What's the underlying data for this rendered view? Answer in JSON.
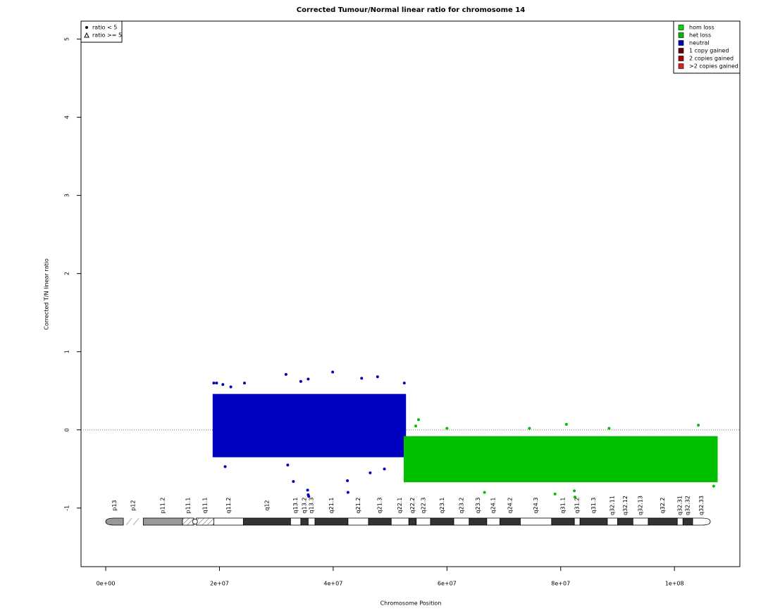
{
  "chart_data": {
    "type": "scatter",
    "title": "Corrected Tumour/Normal linear ratio for chromosome  14",
    "xlabel": "Chromosome Position",
    "ylabel": "Corrected T/N linear ratio",
    "xlim": [
      -4340000,
      111500000
    ],
    "ylim": [
      -1.75,
      5.23
    ],
    "xticks": [
      {
        "value": 0,
        "label": "0e+00"
      },
      {
        "value": 20000000,
        "label": "2e+07"
      },
      {
        "value": 40000000,
        "label": "4e+07"
      },
      {
        "value": 60000000,
        "label": "6e+07"
      },
      {
        "value": 80000000,
        "label": "8e+07"
      },
      {
        "value": 100000000,
        "label": "1e+08"
      }
    ],
    "yticks": [
      -1,
      0,
      1,
      2,
      3,
      4,
      5
    ],
    "hline": 0,
    "symbol_legend": [
      "ratio < 5",
      "ratio >= 5"
    ],
    "state_legend": [
      {
        "name": "hom loss",
        "color": "#00dd00"
      },
      {
        "name": "het loss",
        "color": "#00bb00"
      },
      {
        "name": "neutral",
        "color": "#0000bb"
      },
      {
        "name": "1 copy gained",
        "color": "#660000"
      },
      {
        "name": "2 copies gained",
        "color": "#aa0000"
      },
      {
        "name": ">2 copies gained",
        "color": "#dd2222"
      }
    ],
    "series": [
      {
        "name": "neutral",
        "color": "#0000c0",
        "x_range": [
          18800000,
          52800000
        ],
        "y_range": [
          -0.35,
          0.46
        ],
        "x": [
          19000000,
          19500000,
          20600000,
          22000000,
          24400000,
          31700000,
          34300000,
          35600000,
          39900000,
          45000000,
          47800000,
          52500000,
          33000000,
          35500000,
          35600000,
          35700000,
          42500000,
          42600000,
          46500000,
          21000000,
          49000000,
          32000000
        ],
        "y": [
          0.6,
          0.6,
          0.58,
          0.55,
          0.6,
          0.71,
          0.62,
          0.65,
          0.74,
          0.66,
          0.68,
          0.6,
          -0.66,
          -0.77,
          -0.83,
          -0.85,
          -0.65,
          -0.8,
          -0.55,
          -0.47,
          -0.5,
          -0.45
        ]
      },
      {
        "name": "het loss",
        "color": "#00c000",
        "x_range": [
          52400000,
          107600000
        ],
        "y_range": [
          -0.67,
          -0.08
        ],
        "x": [
          55000000,
          54500000,
          81000000,
          104200000,
          66600000,
          82400000,
          82500000,
          79000000,
          106900000,
          60000000,
          74500000,
          88500000
        ],
        "y": [
          0.13,
          0.05,
          0.07,
          0.06,
          -0.8,
          -0.78,
          -0.86,
          -0.82,
          -0.72,
          0.02,
          0.02,
          0.02
        ]
      }
    ],
    "ideogram": [
      {
        "name": "p13",
        "start": 0,
        "end": 3100000,
        "stain": "gvar"
      },
      {
        "name": "p12",
        "start": 3100000,
        "end": 6600000,
        "stain": "stalk"
      },
      {
        "name": "p11.2",
        "start": 6600000,
        "end": 13500000,
        "stain": "gpos50"
      },
      {
        "name": "p11.1",
        "start": 13500000,
        "end": 15500000,
        "stain": "acen"
      },
      {
        "name": "q11.1",
        "start": 15900000,
        "end": 19000000,
        "stain": "acen"
      },
      {
        "name": "q11.2",
        "start": 19000000,
        "end": 24200000,
        "stain": "gneg"
      },
      {
        "name": "q12",
        "start": 24200000,
        "end": 32500000,
        "stain": "gpos100"
      },
      {
        "name": "q13.1",
        "start": 32500000,
        "end": 34300000,
        "stain": "gneg"
      },
      {
        "name": "q13.2",
        "start": 34300000,
        "end": 35600000,
        "stain": "gpos100"
      },
      {
        "name": "q13.3",
        "start": 35600000,
        "end": 36800000,
        "stain": "gneg"
      },
      {
        "name": "q21.1",
        "start": 36800000,
        "end": 42600000,
        "stain": "gpos100"
      },
      {
        "name": "q21.2",
        "start": 42600000,
        "end": 46200000,
        "stain": "gneg"
      },
      {
        "name": "q21.3",
        "start": 46200000,
        "end": 50200000,
        "stain": "gpos100"
      },
      {
        "name": "q22.1",
        "start": 50200000,
        "end": 53300000,
        "stain": "gneg"
      },
      {
        "name": "q22.2",
        "start": 53300000,
        "end": 54600000,
        "stain": "gpos100"
      },
      {
        "name": "q22.3",
        "start": 54600000,
        "end": 57100000,
        "stain": "gneg"
      },
      {
        "name": "q23.1",
        "start": 57100000,
        "end": 61200000,
        "stain": "gpos100"
      },
      {
        "name": "q23.2",
        "start": 61200000,
        "end": 63900000,
        "stain": "gneg"
      },
      {
        "name": "q23.3",
        "start": 63900000,
        "end": 67000000,
        "stain": "gpos100"
      },
      {
        "name": "q24.1",
        "start": 67000000,
        "end": 69300000,
        "stain": "gneg"
      },
      {
        "name": "q24.2",
        "start": 69300000,
        "end": 72900000,
        "stain": "gpos100"
      },
      {
        "name": "q24.3",
        "start": 72900000,
        "end": 78400000,
        "stain": "gneg"
      },
      {
        "name": "q31.1",
        "start": 78400000,
        "end": 82400000,
        "stain": "gpos100"
      },
      {
        "name": "q31.2",
        "start": 82400000,
        "end": 83400000,
        "stain": "gneg"
      },
      {
        "name": "q31.3",
        "start": 83400000,
        "end": 88200000,
        "stain": "gpos100"
      },
      {
        "name": "q32.11",
        "start": 88200000,
        "end": 90000000,
        "stain": "gneg"
      },
      {
        "name": "q32.12",
        "start": 90000000,
        "end": 92700000,
        "stain": "gpos100"
      },
      {
        "name": "q32.13",
        "start": 92700000,
        "end": 95400000,
        "stain": "gneg"
      },
      {
        "name": "q32.2",
        "start": 95400000,
        "end": 100500000,
        "stain": "gpos100"
      },
      {
        "name": "q32.31",
        "start": 100500000,
        "end": 101500000,
        "stain": "gneg"
      },
      {
        "name": "q32.32",
        "start": 101500000,
        "end": 103200000,
        "stain": "gpos100"
      },
      {
        "name": "q32.33",
        "start": 103200000,
        "end": 106300000,
        "stain": "gneg"
      }
    ]
  }
}
